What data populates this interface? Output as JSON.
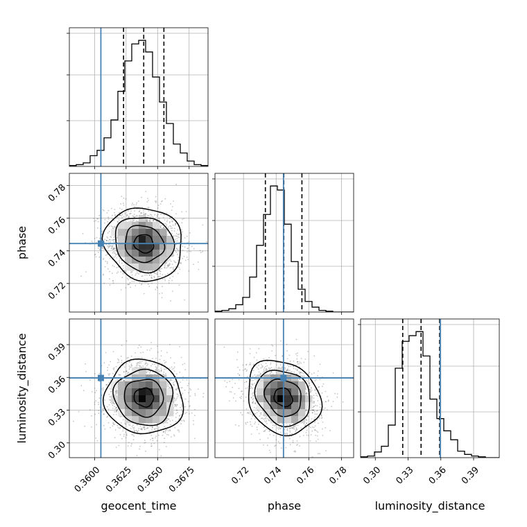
{
  "chart_data": {
    "type": "corner",
    "parameters": [
      "geocent_time",
      "phase",
      "luminosity_distance"
    ],
    "truths": [
      0.3605,
      0.7445,
      0.3595
    ],
    "quantiles": [
      [
        0.3623,
        0.3639,
        0.3655
      ],
      [
        0.7334,
        0.7447,
        0.7558
      ],
      [
        0.3251,
        0.3419,
        0.3589
      ]
    ],
    "ranges": [
      [
        0.358,
        0.369
      ],
      [
        0.7025,
        0.7875
      ],
      [
        0.2865,
        0.4135
      ]
    ],
    "ticks": [
      [
        0.36,
        0.3625,
        0.365,
        0.3675
      ],
      [
        0.72,
        0.74,
        0.76,
        0.78
      ],
      [
        0.3,
        0.33,
        0.36,
        0.39
      ]
    ],
    "tick_labels": [
      [
        "0.3600",
        "0.3625",
        "0.3650",
        "0.3675"
      ],
      [
        "0.72",
        "0.74",
        "0.76",
        "0.78"
      ],
      [
        "0.30",
        "0.33",
        "0.36",
        "0.39"
      ]
    ],
    "histograms": [
      {
        "edges_start": 0.358,
        "bin_width": 0.00055,
        "counts": [
          1,
          2,
          4,
          12,
          18,
          32,
          52,
          84,
          118,
          137,
          141,
          128,
          100,
          72,
          48,
          25,
          15,
          6,
          2,
          1
        ]
      },
      {
        "edges_start": 0.7025,
        "bin_width": 0.00425,
        "counts": [
          1,
          2,
          4,
          9,
          18,
          43,
          82,
          120,
          155,
          150,
          108,
          62,
          28,
          13,
          6,
          2,
          1,
          0,
          0,
          0
        ]
      },
      {
        "edges_start": 0.2865,
        "bin_width": 0.00635,
        "counts": [
          1,
          2,
          7,
          14,
          40,
          110,
          143,
          150,
          155,
          125,
          72,
          48,
          33,
          22,
          8,
          4,
          2,
          1,
          0,
          0
        ]
      }
    ],
    "density_2d": [
      {
        "x": 1,
        "y": 0,
        "mean": [
          0.36392,
          0.74437
        ],
        "sd": [
          0.00155,
          0.0112
        ],
        "corr": -0.1
      },
      {
        "x": 2,
        "y": 0,
        "mean": [
          0.36392,
          0.3417
        ],
        "sd": [
          0.00155,
          0.017
        ],
        "corr": -0.05
      },
      {
        "x": 2,
        "y": 1,
        "mean": [
          0.74437,
          0.3417
        ],
        "sd": [
          0.0112,
          0.017
        ],
        "corr": -0.18
      }
    ],
    "contour_levels_sigma": [
      0.5,
      1.0,
      1.5,
      2.0
    ],
    "grid": true,
    "colors": {
      "truth": "#4682b4",
      "line": "#000000",
      "grid": "#b0b0b0",
      "points": "#5a5a5a"
    }
  }
}
